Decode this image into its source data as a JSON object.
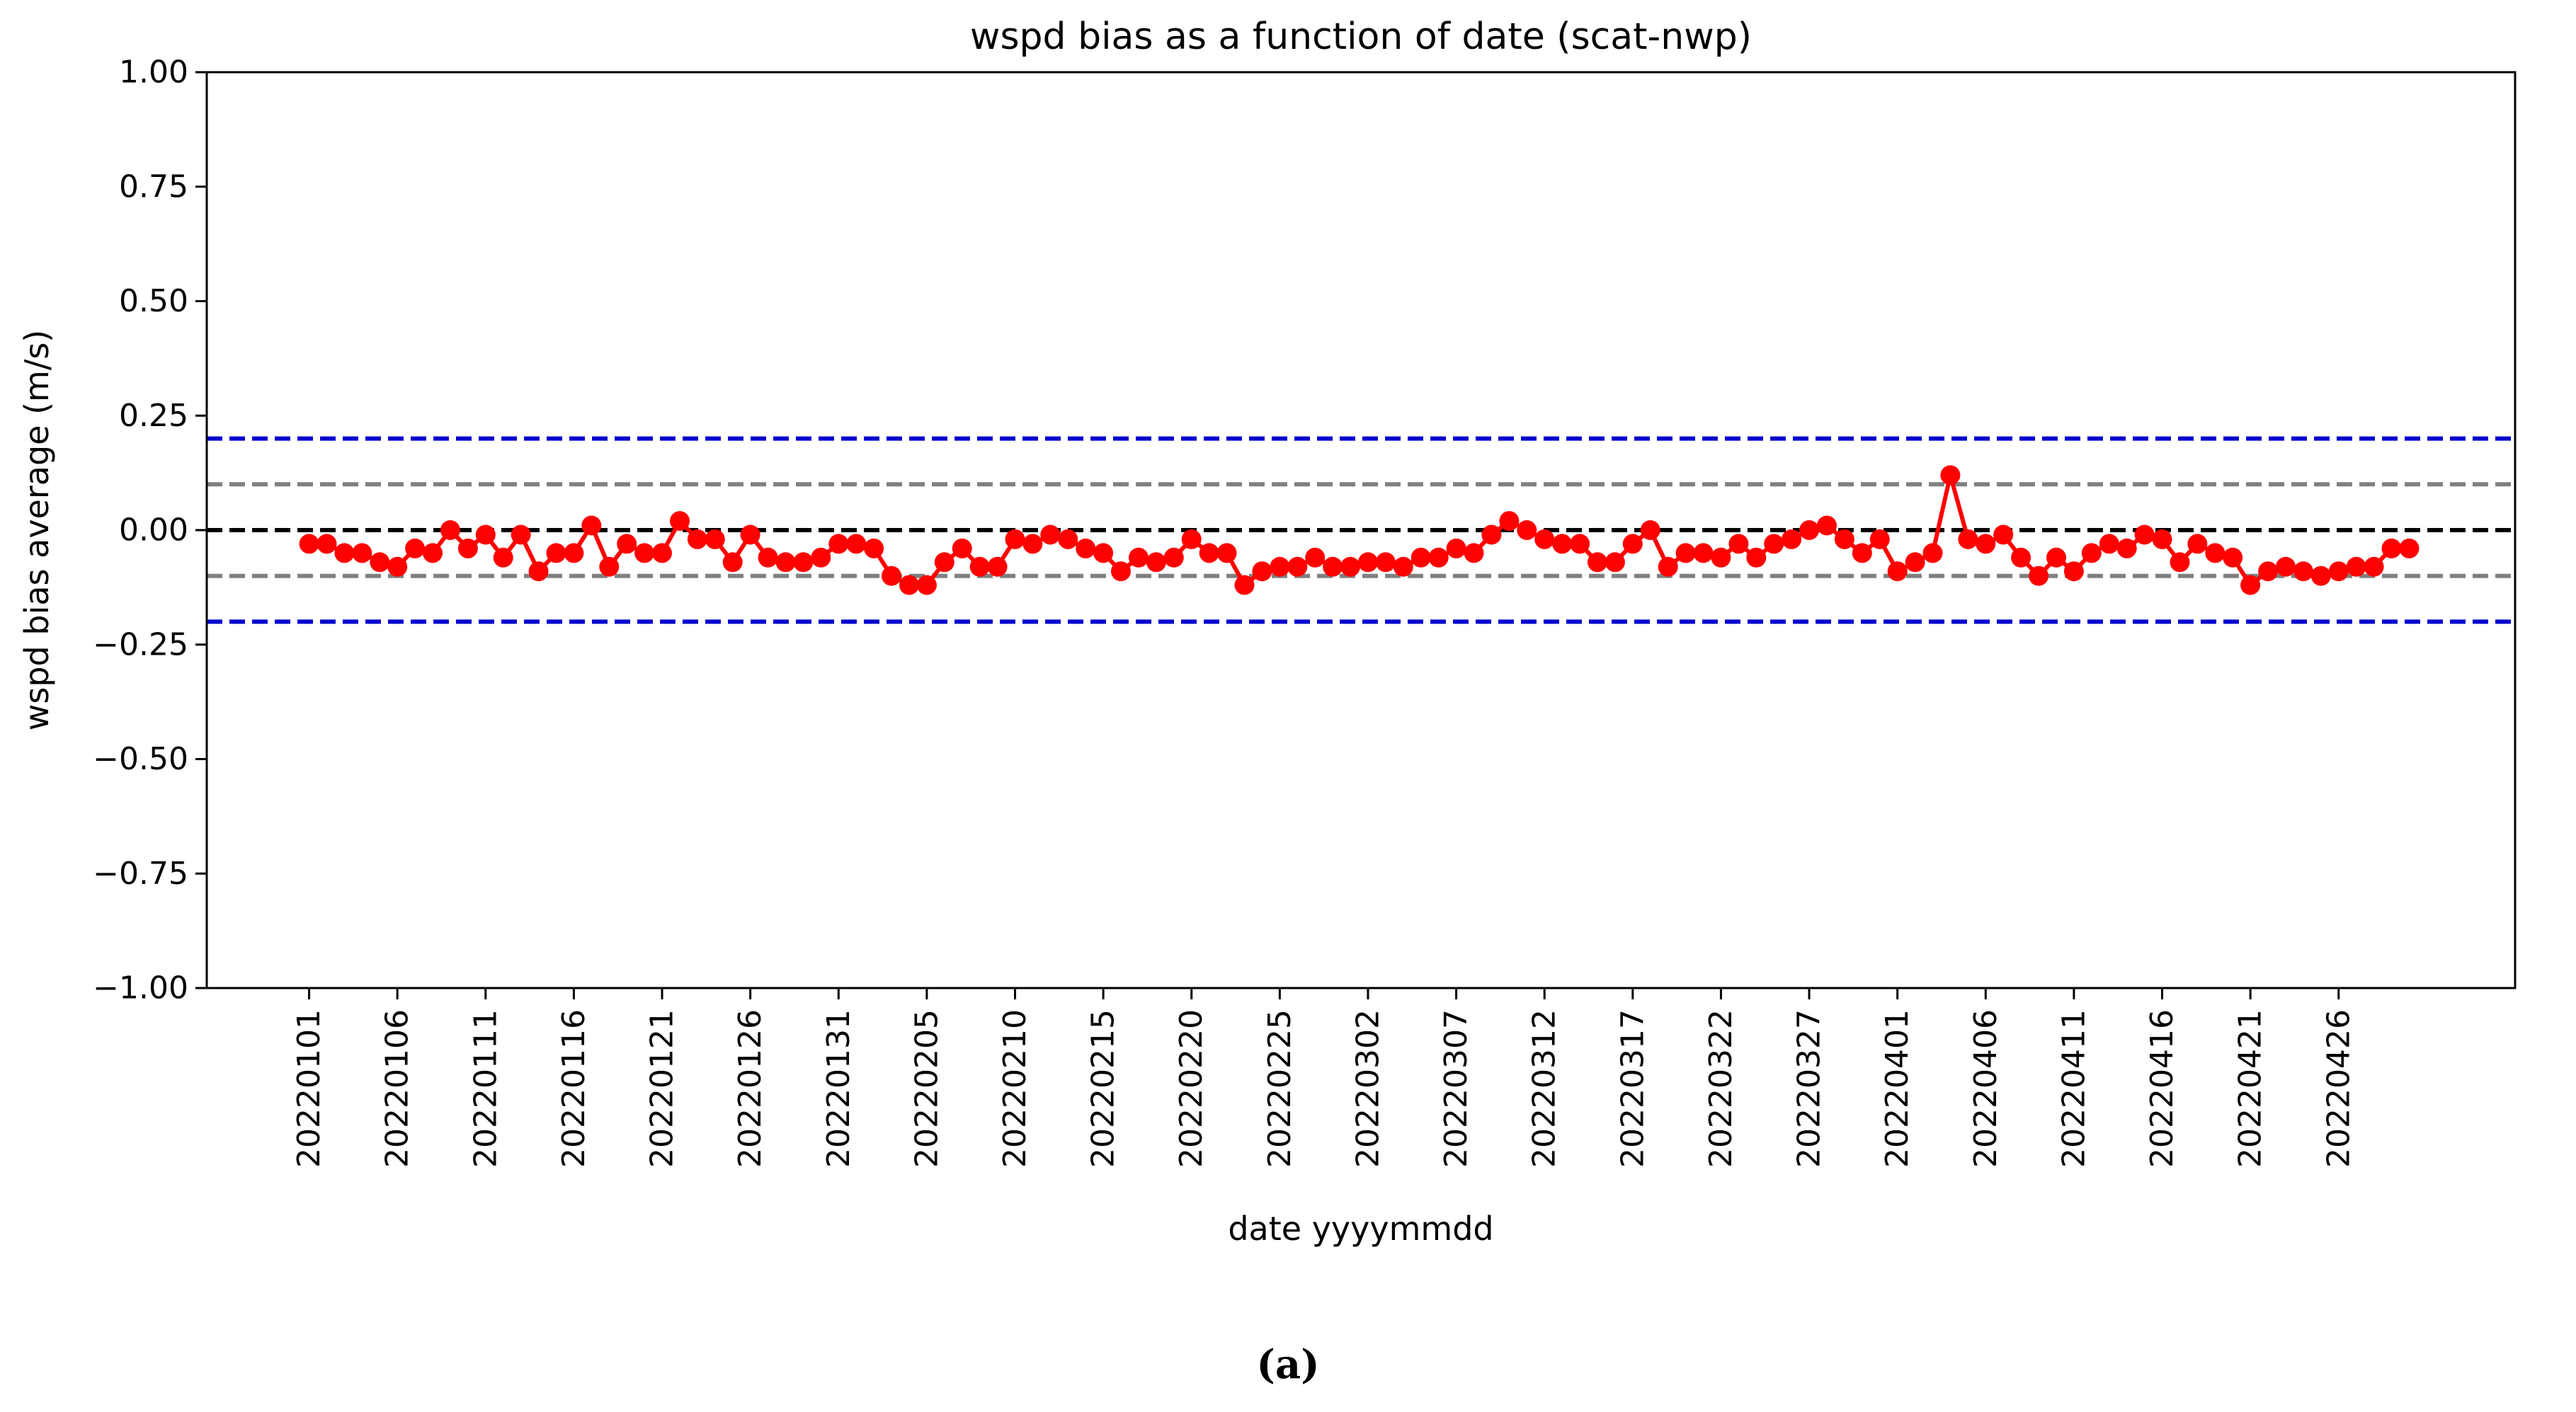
{
  "caption": "(a)",
  "chart_data": {
    "type": "line",
    "title": "wspd bias as a function of date (scat-nwp)",
    "xlabel": "date yyyymmdd",
    "ylabel": "wspd bias average (m/s)",
    "ylim": [
      -1.0,
      1.0
    ],
    "yticks": [
      -1.0,
      -0.75,
      -0.5,
      -0.25,
      0.0,
      0.25,
      0.5,
      0.75,
      1.0
    ],
    "ytick_labels": [
      "−1.00",
      "−0.75",
      "−0.50",
      "−0.25",
      "0.00",
      "0.25",
      "0.50",
      "0.75",
      "1.00"
    ],
    "x_start_date": "20220101",
    "x_end_date": "20220430",
    "xtick_labels": [
      "20220101",
      "20220106",
      "20220111",
      "20220116",
      "20220121",
      "20220126",
      "20220131",
      "20220205",
      "20220210",
      "20220215",
      "20220220",
      "20220225",
      "20220302",
      "20220307",
      "20220312",
      "20220317",
      "20220322",
      "20220327",
      "20220401",
      "20220406",
      "20220411",
      "20220416",
      "20220421",
      "20220426"
    ],
    "grid": false,
    "reference_lines": [
      {
        "y": 0.2,
        "color": "#0000cc",
        "style": "dashed"
      },
      {
        "y": 0.1,
        "color": "#808080",
        "style": "dashed"
      },
      {
        "y": 0.0,
        "color": "#000000",
        "style": "dashed"
      },
      {
        "y": -0.1,
        "color": "#808080",
        "style": "dashed"
      },
      {
        "y": -0.2,
        "color": "#0000cc",
        "style": "dashed"
      }
    ],
    "series": [
      {
        "color": "#ff0000",
        "marker": "circle",
        "values": [
          -0.03,
          -0.03,
          -0.05,
          -0.05,
          -0.07,
          -0.08,
          -0.04,
          -0.05,
          0.0,
          -0.04,
          -0.01,
          -0.06,
          -0.01,
          -0.09,
          -0.05,
          -0.05,
          0.01,
          -0.08,
          -0.03,
          -0.05,
          -0.05,
          0.02,
          -0.02,
          -0.02,
          -0.07,
          -0.01,
          -0.06,
          -0.07,
          -0.07,
          -0.06,
          -0.03,
          -0.03,
          -0.04,
          -0.1,
          -0.12,
          -0.12,
          -0.07,
          -0.04,
          -0.08,
          -0.08,
          -0.02,
          -0.03,
          -0.01,
          -0.02,
          -0.04,
          -0.05,
          -0.09,
          -0.06,
          -0.07,
          -0.06,
          -0.02,
          -0.05,
          -0.05,
          -0.12,
          -0.09,
          -0.08,
          -0.08,
          -0.06,
          -0.08,
          -0.08,
          -0.07,
          -0.07,
          -0.08,
          -0.06,
          -0.06,
          -0.04,
          -0.05,
          -0.01,
          0.02,
          0.0,
          -0.02,
          -0.03,
          -0.03,
          -0.07,
          -0.07,
          -0.03,
          0.0,
          -0.08,
          -0.05,
          -0.05,
          -0.06,
          -0.03,
          -0.06,
          -0.03,
          -0.02,
          0.0,
          0.01,
          -0.02,
          -0.05,
          -0.02,
          -0.09,
          -0.07,
          -0.05,
          0.12,
          -0.02,
          -0.03,
          -0.01,
          -0.06,
          -0.1,
          -0.06,
          -0.09,
          -0.05,
          -0.03,
          -0.04,
          -0.01,
          -0.02,
          -0.07,
          -0.03,
          -0.05,
          -0.06,
          -0.12,
          -0.09,
          -0.08,
          -0.09,
          -0.1,
          -0.09,
          -0.08,
          -0.08,
          -0.04,
          -0.04
        ]
      }
    ]
  }
}
